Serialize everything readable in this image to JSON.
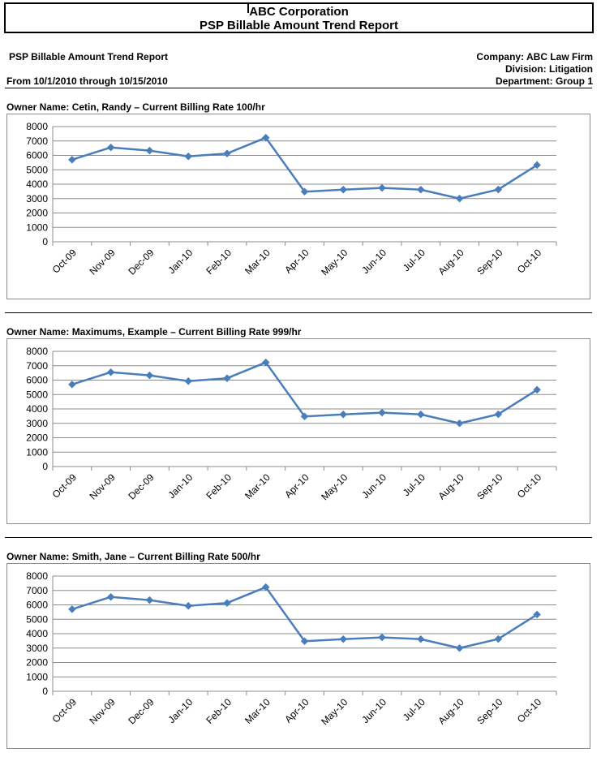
{
  "report": {
    "company_title": "ABC Corporation",
    "report_title": "PSP Billable Amount Trend Report",
    "left_title": "PSP Billable Amount Trend Report",
    "date_range": "From 10/1/2010 through 10/15/2010",
    "company": "Company: ABC Law Firm",
    "division": "Division: Litigation",
    "department": "Department: Group 1"
  },
  "sections": [
    {
      "owner_label": "Owner Name:  Cetin, Randy – Current Billing Rate 100/hr"
    },
    {
      "owner_label": "Owner Name:  Maximums, Example – Current Billing Rate 999/hr"
    },
    {
      "owner_label": "Owner Name:  Smith, Jane – Current Billing Rate 500/hr"
    }
  ],
  "colors": {
    "series": "#4a7ebb",
    "grid": "#8c8c8c"
  },
  "chart_data": [
    {
      "type": "line",
      "categories": [
        "Oct-09",
        "Nov-09",
        "Dec-09",
        "Jan-10",
        "Feb-10",
        "Mar-10",
        "Apr-10",
        "May-10",
        "Jun-10",
        "Jul-10",
        "Aug-10",
        "Sep-10",
        "Oct-10"
      ],
      "values": [
        5700,
        6550,
        6330,
        5930,
        6130,
        7230,
        3480,
        3620,
        3740,
        3620,
        3000,
        3630,
        5330
      ],
      "ylim": [
        0,
        8000
      ],
      "yticks": [
        0,
        1000,
        2000,
        3000,
        4000,
        5000,
        6000,
        7000,
        8000
      ],
      "grid": true,
      "marker": "diamond"
    },
    {
      "type": "line",
      "categories": [
        "Oct-09",
        "Nov-09",
        "Dec-09",
        "Jan-10",
        "Feb-10",
        "Mar-10",
        "Apr-10",
        "May-10",
        "Jun-10",
        "Jul-10",
        "Aug-10",
        "Sep-10",
        "Oct-10"
      ],
      "values": [
        5700,
        6550,
        6330,
        5930,
        6130,
        7230,
        3480,
        3620,
        3740,
        3620,
        3000,
        3630,
        5330
      ],
      "ylim": [
        0,
        8000
      ],
      "yticks": [
        0,
        1000,
        2000,
        3000,
        4000,
        5000,
        6000,
        7000,
        8000
      ],
      "grid": true,
      "marker": "diamond"
    },
    {
      "type": "line",
      "categories": [
        "Oct-09",
        "Nov-09",
        "Dec-09",
        "Jan-10",
        "Feb-10",
        "Mar-10",
        "Apr-10",
        "May-10",
        "Jun-10",
        "Jul-10",
        "Aug-10",
        "Sep-10",
        "Oct-10"
      ],
      "values": [
        5700,
        6550,
        6330,
        5930,
        6130,
        7230,
        3480,
        3620,
        3740,
        3620,
        3000,
        3630,
        5330
      ],
      "ylim": [
        0,
        8000
      ],
      "yticks": [
        0,
        1000,
        2000,
        3000,
        4000,
        5000,
        6000,
        7000,
        8000
      ],
      "grid": true,
      "marker": "diamond"
    }
  ]
}
